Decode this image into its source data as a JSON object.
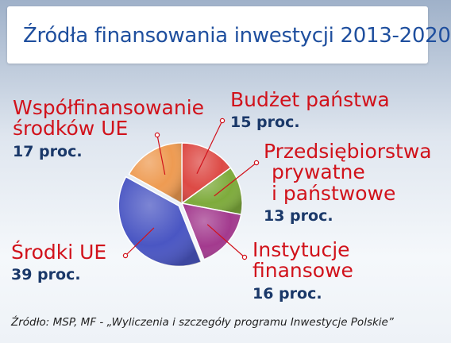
{
  "title": "Źródła finansowania inwestycji 2013-2020",
  "chart_data": {
    "type": "pie",
    "title": "Źródła finansowania inwestycji 2013-2020",
    "slices": [
      {
        "key": "budzet",
        "label": [
          "Budżet państwa"
        ],
        "value": 15,
        "value_label": "15 proc.",
        "color": "#dd4a45"
      },
      {
        "key": "przeds",
        "label": [
          "Przedsiębiorstwa",
          "prywatne",
          "i państwowe"
        ],
        "value": 13,
        "value_label": "13 proc.",
        "color": "#7eab3c"
      },
      {
        "key": "instyt",
        "label": [
          "Instytucje",
          "finansowe"
        ],
        "value": 16,
        "value_label": "16 proc.",
        "color": "#a33a8e"
      },
      {
        "key": "srodki",
        "label": [
          "Środki UE"
        ],
        "value": 39,
        "value_label": "39 proc.",
        "color": "#4a56c3"
      },
      {
        "key": "wspolf",
        "label": [
          "Współfinansowanie",
          "środków UE"
        ],
        "value": 17,
        "value_label": "17 proc.",
        "color": "#ee9b52"
      }
    ]
  },
  "source": "Źródło: MSP, MF - „Wyliczenia i szczegóły programu Inwestycje Polskie”"
}
